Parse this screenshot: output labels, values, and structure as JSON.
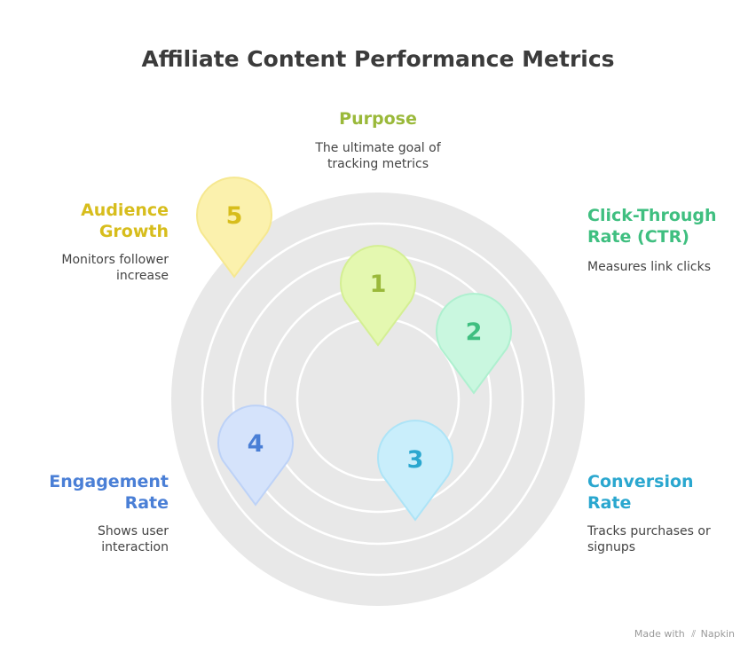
{
  "title": "Affiliate Content Performance Metrics",
  "colors": {
    "background_circle": "#e8e8e8",
    "rings": "#ffffff",
    "purpose": "#9ab93a",
    "ctr": "#3fbf80",
    "conversion": "#2aa7cf",
    "engagement": "#4a7fd6",
    "audience": "#d7bd1c"
  },
  "items": {
    "purpose": {
      "label": "Purpose",
      "desc_line1": "The ultimate goal of",
      "desc_line2": "tracking metrics"
    },
    "ctr": {
      "number": "2",
      "label_line1": "Click-Through",
      "label_line2": "Rate (CTR)",
      "desc_line1": "Measures link clicks",
      "pin_fill": "#c9f7df",
      "pin_stroke": "#aef0cf",
      "num_color": "#3fbf80"
    },
    "conversion": {
      "number": "3",
      "label_line1": "Conversion",
      "label_line2": "Rate",
      "desc_line1": "Tracks purchases or",
      "desc_line2": "signups",
      "pin_fill": "#c9eefb",
      "pin_stroke": "#ade4f7",
      "num_color": "#2aa7cf"
    },
    "engagement": {
      "number": "4",
      "label_line1": "Engagement",
      "label_line2": "Rate",
      "desc_line1": "Shows user",
      "desc_line2": "interaction",
      "pin_fill": "#d5e3fb",
      "pin_stroke": "#bdd2f7",
      "num_color": "#4a7fd6"
    },
    "audience": {
      "number": "5",
      "label_line1": "Audience",
      "label_line2": "Growth",
      "desc_line1": "Monitors follower",
      "desc_line2": "increase",
      "pin_fill": "#fbf1ad",
      "pin_stroke": "#f6e890",
      "num_color": "#d7bd1c"
    },
    "center_pin": {
      "number": "1",
      "pin_fill": "#e4f8b0",
      "pin_stroke": "#d4ef93",
      "num_color": "#9ab93a"
    }
  },
  "footer": {
    "made_with": "Made with",
    "brand": "Napkin"
  }
}
